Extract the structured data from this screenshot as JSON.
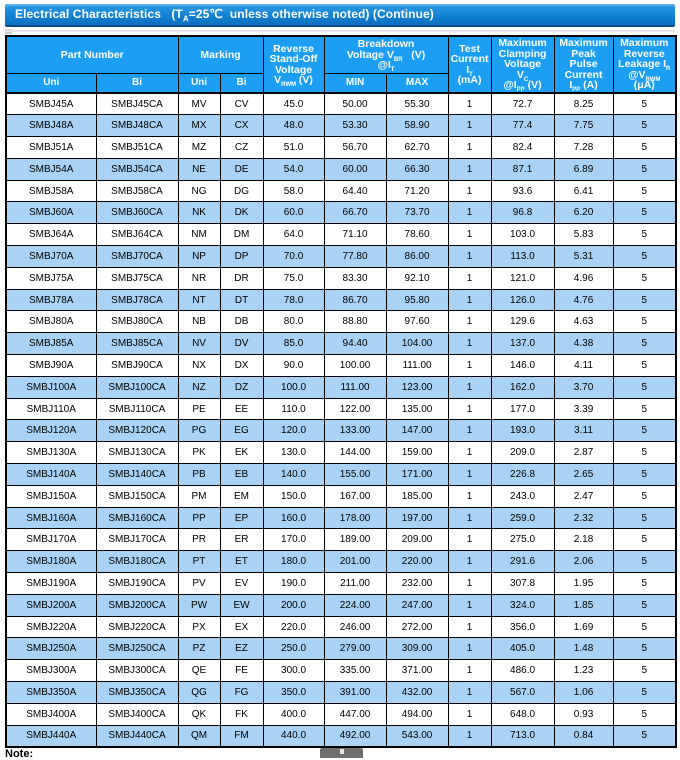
{
  "title_bar": {
    "text": "Electrical Characteristics   (T~A~=25℃  unless otherwise noted) (Continue)"
  },
  "colors": {
    "header-blue": "#1c9ef3",
    "row-alt": "#a9d2f5",
    "title-top": "#2b9be5",
    "title-bottom": "#0d6fc0",
    "grid": "#000000"
  },
  "table": {
    "header": {
      "part_number": "Part Number",
      "marking": "Marking",
      "vrwm": "Reverse\nStand-Off\nVoltage\nV~RWM~ (V)",
      "breakdown": "Breakdown\nVoltage V~BR~   (V)\n@I~T~",
      "test_current": "Test\nCurrent\nI~T~\n(mA)",
      "clamping": "Maximum\nClamping\nVoltage\nV~C~\n@I~PP~ (V)",
      "peak_pulse": "Maximum\nPeak\nPulse\nCurrent\nI~PP~ (A)",
      "leakage": "Maximum\nReverse\nLeakage I~R~\n@V~RWM~\n(μA)",
      "sub": [
        "Uni",
        "Bi",
        "Uni",
        "Bi",
        "MIN",
        "MAX"
      ]
    },
    "rows": [
      [
        "SMBJ45A",
        "SMBJ45CA",
        "MV",
        "CV",
        "45.0",
        "50.00",
        "55.30",
        "1",
        "72.7",
        "8.25",
        "5"
      ],
      [
        "SMBJ48A",
        "SMBJ48CA",
        "MX",
        "CX",
        "48.0",
        "53.30",
        "58.90",
        "1",
        "77.4",
        "7.75",
        "5"
      ],
      [
        "SMBJ51A",
        "SMBJ51CA",
        "MZ",
        "CZ",
        "51.0",
        "56.70",
        "62.70",
        "1",
        "82.4",
        "7.28",
        "5"
      ],
      [
        "SMBJ54A",
        "SMBJ54CA",
        "NE",
        "DE",
        "54.0",
        "60.00",
        "66.30",
        "1",
        "87.1",
        "6.89",
        "5"
      ],
      [
        "SMBJ58A",
        "SMBJ58CA",
        "NG",
        "DG",
        "58.0",
        "64.40",
        "71.20",
        "1",
        "93.6",
        "6.41",
        "5"
      ],
      [
        "SMBJ60A",
        "SMBJ60CA",
        "NK",
        "DK",
        "60.0",
        "66.70",
        "73.70",
        "1",
        "96.8",
        "6.20",
        "5"
      ],
      [
        "SMBJ64A",
        "SMBJ64CA",
        "NM",
        "DM",
        "64.0",
        "71.10",
        "78.60",
        "1",
        "103.0",
        "5.83",
        "5"
      ],
      [
        "SMBJ70A",
        "SMBJ70CA",
        "NP",
        "DP",
        "70.0",
        "77.80",
        "86.00",
        "1",
        "113.0",
        "5.31",
        "5"
      ],
      [
        "SMBJ75A",
        "SMBJ75CA",
        "NR",
        "DR",
        "75.0",
        "83.30",
        "92.10",
        "1",
        "121.0",
        "4.96",
        "5"
      ],
      [
        "SMBJ78A",
        "SMBJ78CA",
        "NT",
        "DT",
        "78.0",
        "86.70",
        "95.80",
        "1",
        "126.0",
        "4.76",
        "5"
      ],
      [
        "SMBJ80A",
        "SMBJ80CA",
        "NB",
        "DB",
        "80.0",
        "88.80",
        "97.60",
        "1",
        "129.6",
        "4.63",
        "5"
      ],
      [
        "SMBJ85A",
        "SMBJ85CA",
        "NV",
        "DV",
        "85.0",
        "94.40",
        "104.00",
        "1",
        "137.0",
        "4.38",
        "5"
      ],
      [
        "SMBJ90A",
        "SMBJ90CA",
        "NX",
        "DX",
        "90.0",
        "100.00",
        "111.00",
        "1",
        "146.0",
        "4.11",
        "5"
      ],
      [
        "SMBJ100A",
        "SMBJ100CA",
        "NZ",
        "DZ",
        "100.0",
        "111.00",
        "123.00",
        "1",
        "162.0",
        "3.70",
        "5"
      ],
      [
        "SMBJ110A",
        "SMBJ110CA",
        "PE",
        "EE",
        "110.0",
        "122.00",
        "135.00",
        "1",
        "177.0",
        "3.39",
        "5"
      ],
      [
        "SMBJ120A",
        "SMBJ120CA",
        "PG",
        "EG",
        "120.0",
        "133.00",
        "147.00",
        "1",
        "193.0",
        "3.11",
        "5"
      ],
      [
        "SMBJ130A",
        "SMBJ130CA",
        "PK",
        "EK",
        "130.0",
        "144.00",
        "159.00",
        "1",
        "209.0",
        "2.87",
        "5"
      ],
      [
        "SMBJ140A",
        "SMBJ140CA",
        "PB",
        "EB",
        "140.0",
        "155.00",
        "171.00",
        "1",
        "226.8",
        "2.65",
        "5"
      ],
      [
        "SMBJ150A",
        "SMBJ150CA",
        "PM",
        "EM",
        "150.0",
        "167.00",
        "185.00",
        "1",
        "243.0",
        "2.47",
        "5"
      ],
      [
        "SMBJ160A",
        "SMBJ160CA",
        "PP",
        "EP",
        "160.0",
        "178.00",
        "197.00",
        "1",
        "259.0",
        "2.32",
        "5"
      ],
      [
        "SMBJ170A",
        "SMBJ170CA",
        "PR",
        "ER",
        "170.0",
        "189.00",
        "209.00",
        "1",
        "275.0",
        "2.18",
        "5"
      ],
      [
        "SMBJ180A",
        "SMBJ180CA",
        "PT",
        "ET",
        "180.0",
        "201.00",
        "220.00",
        "1",
        "291.6",
        "2.06",
        "5"
      ],
      [
        "SMBJ190A",
        "SMBJ190CA",
        "PV",
        "EV",
        "190.0",
        "211.00",
        "232.00",
        "1",
        "307.8",
        "1.95",
        "5"
      ],
      [
        "SMBJ200A",
        "SMBJ200CA",
        "PW",
        "EW",
        "200.0",
        "224.00",
        "247.00",
        "1",
        "324.0",
        "1.85",
        "5"
      ],
      [
        "SMBJ220A",
        "SMBJ220CA",
        "PX",
        "EX",
        "220.0",
        "246.00",
        "272.00",
        "1",
        "356.0",
        "1.69",
        "5"
      ],
      [
        "SMBJ250A",
        "SMBJ250CA",
        "PZ",
        "EZ",
        "250.0",
        "279.00",
        "309.00",
        "1",
        "405.0",
        "1.48",
        "5"
      ],
      [
        "SMBJ300A",
        "SMBJ300CA",
        "QE",
        "FE",
        "300.0",
        "335.00",
        "371.00",
        "1",
        "486.0",
        "1.23",
        "5"
      ],
      [
        "SMBJ350A",
        "SMBJ350CA",
        "QG",
        "FG",
        "350.0",
        "391.00",
        "432.00",
        "1",
        "567.0",
        "1.06",
        "5"
      ],
      [
        "SMBJ400A",
        "SMBJ400CA",
        "QK",
        "FK",
        "400.0",
        "447.00",
        "494.00",
        "1",
        "648.0",
        "0.93",
        "5"
      ],
      [
        "SMBJ440A",
        "SMBJ440CA",
        "QM",
        "FM",
        "440.0",
        "492.00",
        "543.00",
        "1",
        "713.0",
        "0.84",
        "5"
      ]
    ]
  },
  "footer": {
    "note": "Note:"
  }
}
